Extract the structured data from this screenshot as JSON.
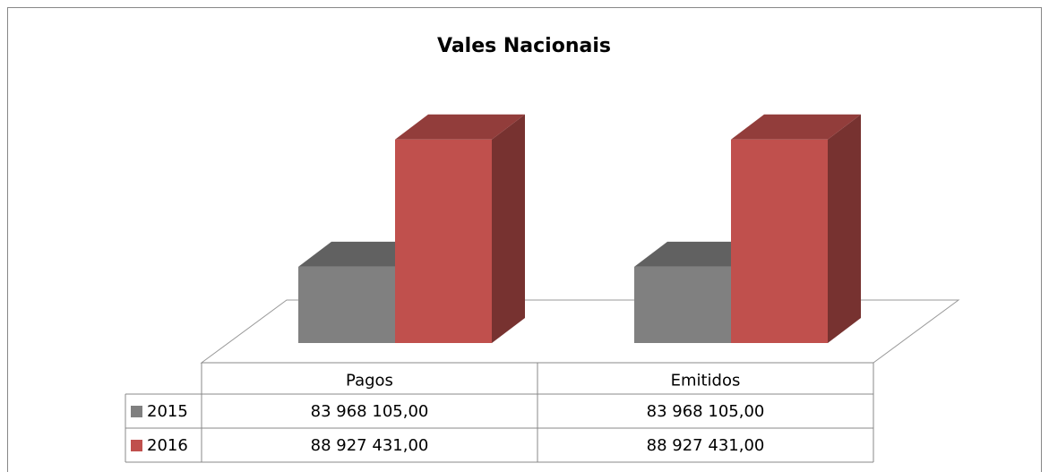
{
  "chart_data": {
    "type": "bar3d",
    "title": "Vales Nacionais",
    "categories": [
      "Pagos",
      "Emitidos"
    ],
    "series": [
      {
        "name": "2015",
        "color": "#808080",
        "values": [
          83968105,
          83968105
        ],
        "value_labels": [
          "83 968 105,00",
          "83 968 105,00"
        ]
      },
      {
        "name": "2016",
        "color": "#c0504d",
        "values": [
          88927431,
          88927431
        ],
        "value_labels": [
          "88 927 431,00",
          "88 927 431,00"
        ]
      }
    ],
    "ylim": [
      81000000,
      90000000
    ]
  }
}
